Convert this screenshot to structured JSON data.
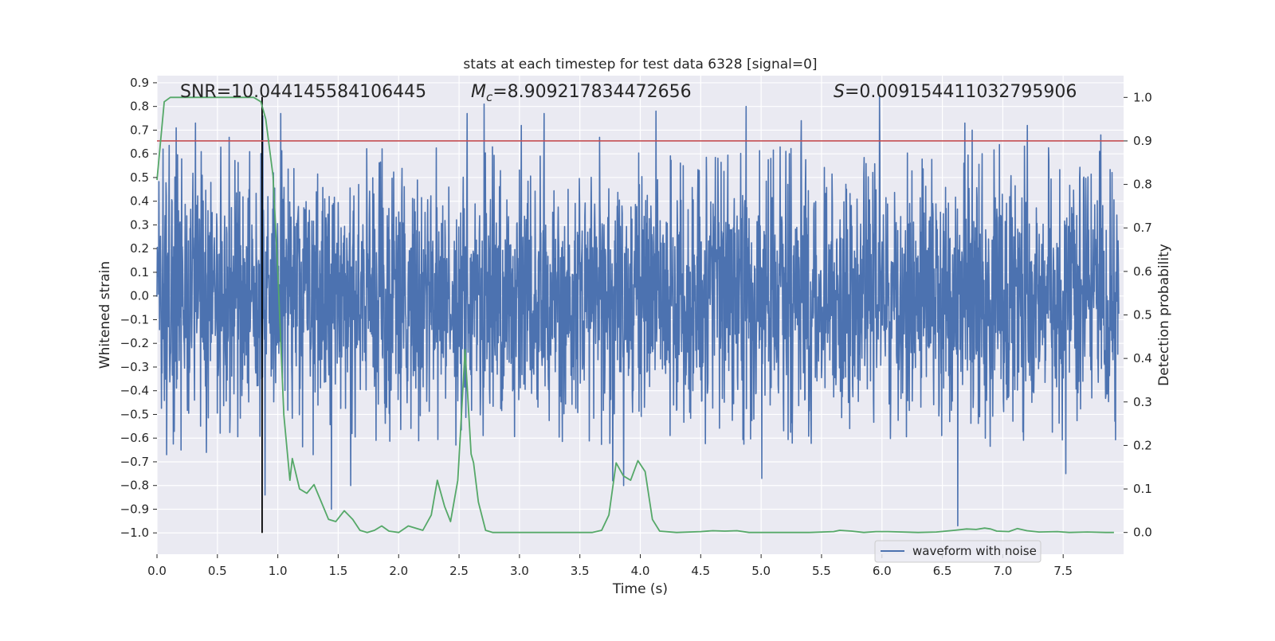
{
  "chart_data": {
    "type": "line",
    "title": "stats at each timestep for test data 6328 [signal=0]",
    "xlabel": "Time (s)",
    "ylabel_left": "Whitened strain",
    "ylabel_right": "Detection probability",
    "xlim": [
      0.0,
      8.0
    ],
    "ylim_left": [
      -1.09,
      0.93
    ],
    "ylim_right": [
      -0.05,
      1.05
    ],
    "grid": true,
    "xticks": [
      0.0,
      0.5,
      1.0,
      1.5,
      2.0,
      2.5,
      3.0,
      3.5,
      4.0,
      4.5,
      5.0,
      5.5,
      6.0,
      6.5,
      7.0,
      7.5
    ],
    "xtick_labels": [
      "0.0",
      "0.5",
      "1.0",
      "1.5",
      "2.0",
      "2.5",
      "3.0",
      "3.5",
      "4.0",
      "4.5",
      "5.0",
      "5.5",
      "6.0",
      "6.5",
      "7.0",
      "7.5"
    ],
    "yticks_left": [
      0.9,
      0.8,
      0.7,
      0.6,
      0.5,
      0.4,
      0.3,
      0.2,
      0.1,
      0.0,
      -0.1,
      -0.2,
      -0.3,
      -0.4,
      -0.5,
      -0.6,
      -0.7,
      -0.8,
      -0.9,
      -1.0
    ],
    "ytick_labels_left": [
      "0.9",
      "0.8",
      "0.7",
      "0.6",
      "0.5",
      "0.4",
      "0.3",
      "0.2",
      "0.1",
      "0.0",
      "−0.1",
      "−0.2",
      "−0.3",
      "−0.4",
      "−0.5",
      "−0.6",
      "−0.7",
      "−0.8",
      "−0.9",
      "−1.0"
    ],
    "yticks_right": [
      1.0,
      0.9,
      0.8,
      0.7,
      0.6,
      0.5,
      0.4,
      0.3,
      0.2,
      0.1,
      0.0
    ],
    "ytick_labels_right": [
      "1.0",
      "0.9",
      "0.8",
      "0.7",
      "0.6",
      "0.5",
      "0.4",
      "0.3",
      "0.2",
      "0.1",
      "0.0"
    ],
    "annotations": {
      "snr": "SNR=10.044145584106445",
      "mc_symbol": "M",
      "mc_subscript": "c",
      "mc_value": "=8.909217834472656",
      "s_symbol": "S",
      "s_value": "=0.009154411032795906"
    },
    "legend": {
      "label": "waveform with noise",
      "position": "lower-right"
    },
    "threshold_probability": 0.9,
    "marker_time_s": 0.87,
    "marker_strain_range": [
      -1.0,
      0.84
    ],
    "waveform": {
      "name": "waveform with noise",
      "typical_envelope": 0.43,
      "seed": 6328,
      "spikes": [
        {
          "t": 0.05,
          "v": 0.62
        },
        {
          "t": 0.08,
          "v": -0.67
        },
        {
          "t": 0.16,
          "v": 0.71
        },
        {
          "t": 0.2,
          "v": -0.65
        },
        {
          "t": 0.32,
          "v": 0.73
        },
        {
          "t": 0.41,
          "v": -0.66
        },
        {
          "t": 0.6,
          "v": 0.67
        },
        {
          "t": 0.88,
          "v": 0.76
        },
        {
          "t": 0.9,
          "v": -0.84
        },
        {
          "t": 1.03,
          "v": 0.77
        },
        {
          "t": 1.3,
          "v": -0.67
        },
        {
          "t": 1.45,
          "v": -0.9
        },
        {
          "t": 1.61,
          "v": -0.8
        },
        {
          "t": 2.58,
          "v": 0.77
        },
        {
          "t": 2.72,
          "v": 0.81
        },
        {
          "t": 3.03,
          "v": 0.72
        },
        {
          "t": 3.22,
          "v": 0.77
        },
        {
          "t": 3.68,
          "v": 0.67
        },
        {
          "t": 3.79,
          "v": -0.78
        },
        {
          "t": 3.88,
          "v": -0.8
        },
        {
          "t": 4.15,
          "v": 0.78
        },
        {
          "t": 4.9,
          "v": 0.8
        },
        {
          "t": 5.03,
          "v": -0.77
        },
        {
          "t": 5.36,
          "v": 0.74
        },
        {
          "t": 6.01,
          "v": 0.84
        },
        {
          "t": 6.66,
          "v": -0.97
        },
        {
          "t": 6.72,
          "v": 0.73
        },
        {
          "t": 6.78,
          "v": 0.7
        },
        {
          "t": 7.24,
          "v": 0.72
        },
        {
          "t": 7.56,
          "v": -0.75
        },
        {
          "t": 7.85,
          "v": 0.68
        }
      ]
    },
    "detection_probability": {
      "x": [
        0.0,
        0.06,
        0.11,
        0.17,
        0.25,
        0.35,
        0.45,
        0.55,
        0.65,
        0.75,
        0.8,
        0.86,
        0.9,
        0.96,
        1.0,
        1.05,
        1.1,
        1.12,
        1.18,
        1.24,
        1.3,
        1.36,
        1.42,
        1.48,
        1.55,
        1.62,
        1.68,
        1.74,
        1.8,
        1.86,
        1.92,
        2.0,
        2.08,
        2.14,
        2.2,
        2.27,
        2.32,
        2.38,
        2.43,
        2.49,
        2.55,
        2.6,
        2.62,
        2.66,
        2.72,
        2.78,
        2.9,
        3.0,
        3.2,
        3.4,
        3.6,
        3.68,
        3.74,
        3.8,
        3.86,
        3.92,
        3.98,
        4.04,
        4.1,
        4.16,
        4.3,
        4.5,
        4.6,
        4.7,
        4.8,
        4.9,
        5.0,
        5.2,
        5.4,
        5.6,
        5.65,
        5.75,
        5.85,
        5.95,
        6.05,
        6.3,
        6.45,
        6.6,
        6.7,
        6.78,
        6.85,
        6.9,
        6.95,
        7.05,
        7.12,
        7.2,
        7.3,
        7.45,
        7.55,
        7.7,
        7.85,
        7.92
      ],
      "y": [
        0.81,
        0.99,
        1.0,
        1.0,
        1.0,
        1.0,
        1.0,
        1.0,
        1.0,
        1.0,
        1.0,
        0.99,
        0.95,
        0.82,
        0.6,
        0.27,
        0.12,
        0.17,
        0.1,
        0.09,
        0.11,
        0.07,
        0.03,
        0.025,
        0.05,
        0.03,
        0.005,
        0.0,
        0.005,
        0.015,
        0.003,
        0.0,
        0.015,
        0.01,
        0.005,
        0.04,
        0.12,
        0.06,
        0.025,
        0.12,
        0.42,
        0.18,
        0.16,
        0.07,
        0.005,
        0.0,
        0.0,
        0.0,
        0.0,
        0.0,
        0.0,
        0.005,
        0.04,
        0.16,
        0.13,
        0.12,
        0.165,
        0.14,
        0.03,
        0.003,
        0.0,
        0.002,
        0.004,
        0.003,
        0.004,
        0.0,
        0.0,
        0.0,
        0.0,
        0.002,
        0.005,
        0.003,
        0.0,
        0.002,
        0.002,
        0.0,
        0.001,
        0.005,
        0.008,
        0.007,
        0.01,
        0.008,
        0.003,
        0.002,
        0.009,
        0.004,
        0.001,
        0.002,
        0.0,
        0.001,
        0.0,
        0.0
      ]
    },
    "colors": {
      "background": "#eaeaf2",
      "grid": "#ffffff",
      "waveform": "#4c72b0",
      "probability": "#55a868",
      "threshold": "#c44e52",
      "marker": "#000000"
    }
  }
}
